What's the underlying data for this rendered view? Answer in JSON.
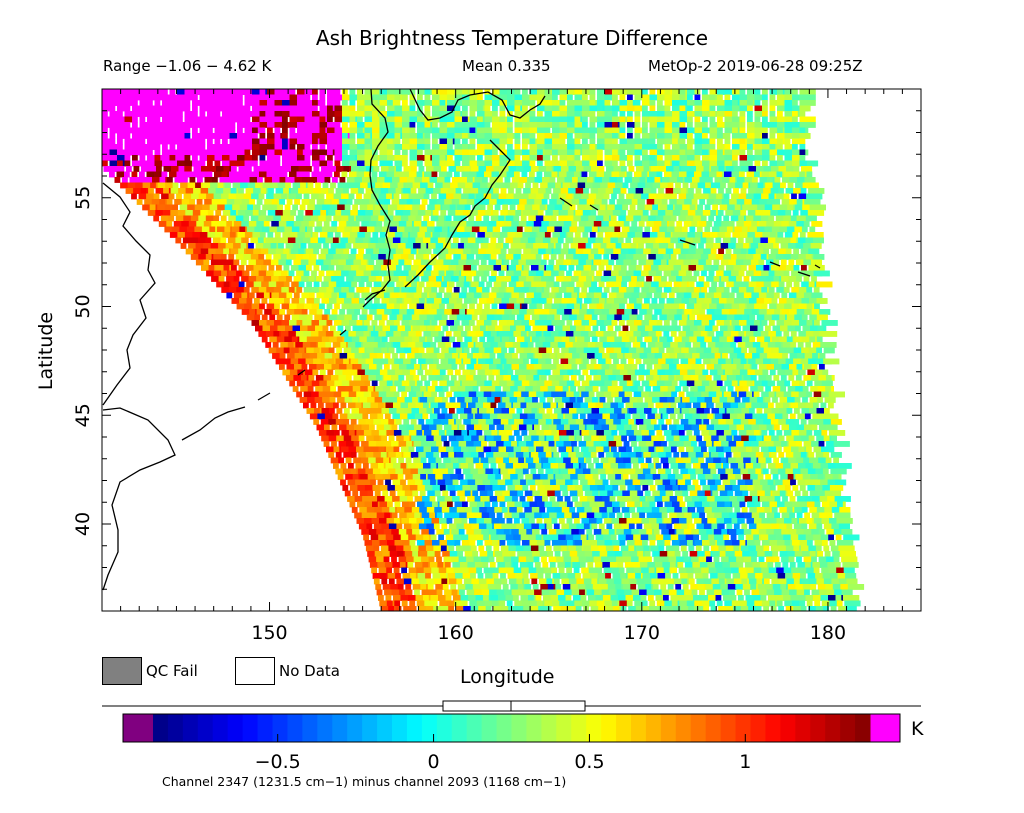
{
  "header": {
    "title": "Ash Brightness Temperature Difference",
    "range": "Range −1.06 − 4.62 K",
    "mean": "Mean 0.335",
    "satellite": "MetOp-2 2019-06-28 09:25Z"
  },
  "legend": {
    "qc_fail": "QC Fail",
    "no_data": "No Data",
    "qc_color": "#808080",
    "nodata_color": "#ffffff"
  },
  "colorbar": {
    "unit": "K",
    "tick_labels": [
      "−0.5",
      "0",
      "0.5",
      "1"
    ],
    "tick_values": [
      -0.5,
      0,
      0.5,
      1
    ],
    "range": [
      -0.9,
      1.4
    ],
    "low_color": "#800080",
    "high_color": "#ff00ff",
    "colormap": "jet"
  },
  "footer": "Channel 2347 (1231.5 cm−1) minus channel 2093 (1168 cm−1)",
  "chart_data": {
    "type": "heatmap",
    "title": "Ash Brightness Temperature Difference",
    "xlabel": "Longitude",
    "ylabel": "Latitude",
    "xlim": [
      141,
      185
    ],
    "ylim": [
      36,
      60
    ],
    "x_ticks": [
      150,
      160,
      170,
      180
    ],
    "y_ticks": [
      40,
      45,
      50,
      55
    ],
    "x_tick_labels": [
      "150",
      "160",
      "170",
      "180"
    ],
    "y_tick_labels": [
      "40",
      "45",
      "50",
      "55"
    ],
    "units": "K",
    "value_range": [
      -1.06,
      4.62
    ],
    "mean": 0.335,
    "swath_edges": {
      "west_edge_points": [
        [
          141,
          56.4
        ],
        [
          145,
          53.0
        ],
        [
          149,
          49.3
        ],
        [
          152.5,
          44.5
        ],
        [
          155,
          39.5
        ],
        [
          156,
          36
        ]
      ],
      "east_edge_points": [
        [
          178.6,
          60
        ],
        [
          179.2,
          53
        ],
        [
          180.2,
          45
        ],
        [
          181.2,
          36
        ]
      ]
    },
    "features": [
      {
        "region": "northwest corner",
        "lon": [
          141,
          154
        ],
        "lat": [
          56,
          60
        ],
        "value": 1.5,
        "description": "saturated magenta"
      },
      {
        "region": "western swath edge band",
        "value": 0.9
      },
      {
        "region": "interior",
        "value": 0.3
      }
    ]
  }
}
